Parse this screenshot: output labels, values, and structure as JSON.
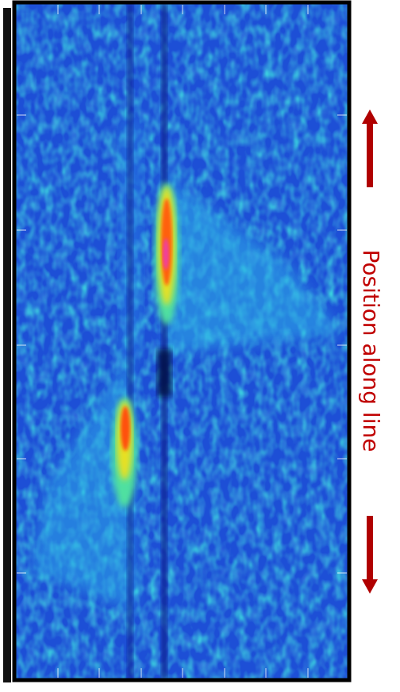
{
  "label": "Position along line"
}
